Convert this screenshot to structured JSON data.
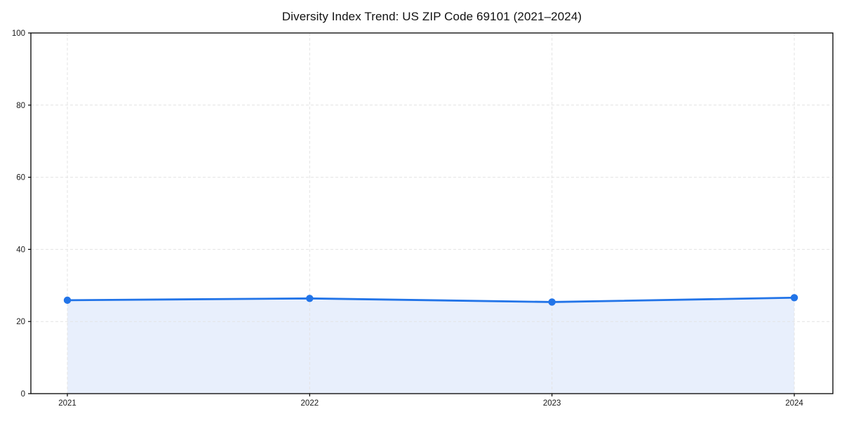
{
  "chart_data": {
    "type": "area",
    "title": "Diversity Index Trend: US ZIP Code 69101 (2021–2024)",
    "categories": [
      "2021",
      "2022",
      "2023",
      "2024"
    ],
    "series": [
      {
        "name": "Diversity Index",
        "values": [
          25.9,
          26.4,
          25.4,
          26.6
        ]
      }
    ],
    "xlabel": "",
    "ylabel": "",
    "ylim": [
      0,
      100
    ],
    "yticks": [
      0,
      20,
      40,
      60,
      80,
      100
    ],
    "grid": true,
    "grid_style": "dashed",
    "legend_position": "none",
    "colors": {
      "line": "#2274e8",
      "marker": "#2274e8",
      "fill": "#e8effc",
      "grid": "#e3e3e3",
      "spine": "#000000",
      "tick_label": "#1a1a1a",
      "title": "#111111",
      "background": "#ffffff"
    }
  }
}
